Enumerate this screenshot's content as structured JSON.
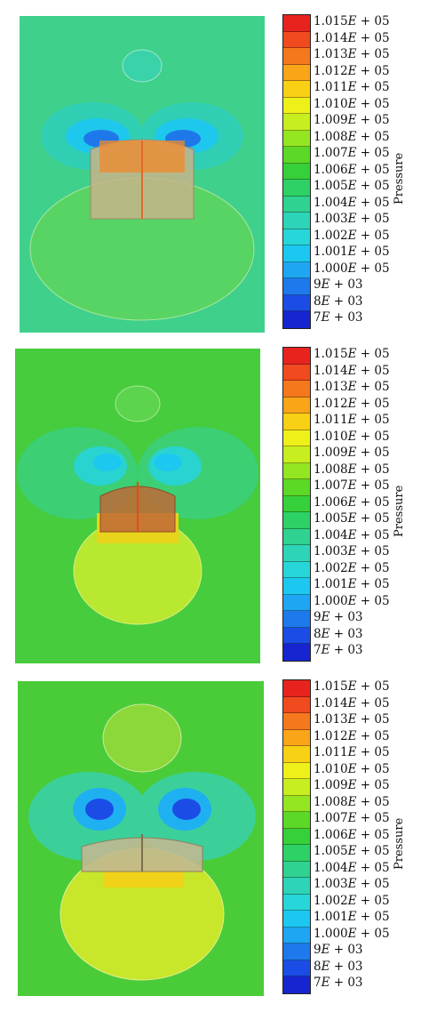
{
  "legend": {
    "title": "Pressure",
    "entries": [
      {
        "mant": "1.015",
        "exp": "+ 05",
        "color": "#e8231e"
      },
      {
        "mant": "1.014",
        "exp": "+ 05",
        "color": "#f04a1e"
      },
      {
        "mant": "1.013",
        "exp": "+ 05",
        "color": "#f5781c"
      },
      {
        "mant": "1.012",
        "exp": "+ 05",
        "color": "#f9a518"
      },
      {
        "mant": "1.011",
        "exp": "+ 05",
        "color": "#f8d014"
      },
      {
        "mant": "1.010",
        "exp": "+ 05",
        "color": "#eef01a"
      },
      {
        "mant": "1.009",
        "exp": "+ 05",
        "color": "#c7ee1e"
      },
      {
        "mant": "1.008",
        "exp": "+ 05",
        "color": "#93e621"
      },
      {
        "mant": "1.007",
        "exp": "+ 05",
        "color": "#5cd826"
      },
      {
        "mant": "1.006",
        "exp": "+ 05",
        "color": "#36d03a"
      },
      {
        "mant": "1.005",
        "exp": "+ 05",
        "color": "#2ed166"
      },
      {
        "mant": "1.004",
        "exp": "+ 05",
        "color": "#2fd291"
      },
      {
        "mant": "1.003",
        "exp": "+ 05",
        "color": "#2ed4b8"
      },
      {
        "mant": "1.002",
        "exp": "+ 05",
        "color": "#27d6d8"
      },
      {
        "mant": "1.001",
        "exp": "+ 05",
        "color": "#1cc8f0"
      },
      {
        "mant": "1.000",
        "exp": "+ 05",
        "color": "#1fa6f2"
      },
      {
        "mant": "9",
        "exp": "+ 03",
        "color": "#1e79ec"
      },
      {
        "mant": "8",
        "exp": "+ 03",
        "color": "#1b4de6"
      },
      {
        "mant": "7",
        "exp": "+ 03",
        "color": "#1625cf"
      }
    ]
  },
  "panels": [
    {
      "background": "#3fcf8c"
    },
    {
      "background": "#44cc3c"
    },
    {
      "background": "#48cc38"
    }
  ]
}
